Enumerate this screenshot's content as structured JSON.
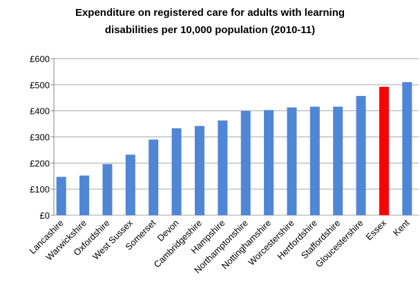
{
  "chart_data": {
    "type": "bar",
    "title": "Expenditure on registered care for adults with learning disabilities per 10,000 population (2010-11)",
    "categories": [
      "Lancashire",
      "Warwickshire",
      "Oxfordshire",
      "West Sussex",
      "Somerset",
      "Devon",
      "Cambridgeshire",
      "Hampshire",
      "Northamptonshire",
      "Nottinghamshire",
      "Worcestershire",
      "Hertfordshire",
      "Staffordshire",
      "Gloucestershire",
      "Essex",
      "Kent"
    ],
    "values": [
      147,
      152,
      196,
      232,
      290,
      333,
      342,
      363,
      400,
      403,
      413,
      416,
      416,
      457,
      492,
      510
    ],
    "colors": [
      "#4f86d6",
      "#4f86d6",
      "#4f86d6",
      "#4f86d6",
      "#4f86d6",
      "#4f86d6",
      "#4f86d6",
      "#4f86d6",
      "#4f86d6",
      "#4f86d6",
      "#4f86d6",
      "#4f86d6",
      "#4f86d6",
      "#4f86d6",
      "#ff0000",
      "#4f86d6"
    ],
    "ylim": [
      0,
      600
    ],
    "yticks": [
      {
        "value": 0,
        "label": "£0"
      },
      {
        "value": 100,
        "label": "£100"
      },
      {
        "value": 200,
        "label": "£200"
      },
      {
        "value": 300,
        "label": "£300"
      },
      {
        "value": 400,
        "label": "£400"
      },
      {
        "value": 500,
        "label": "£500"
      },
      {
        "value": 600,
        "label": "£600"
      }
    ],
    "grid": true
  }
}
